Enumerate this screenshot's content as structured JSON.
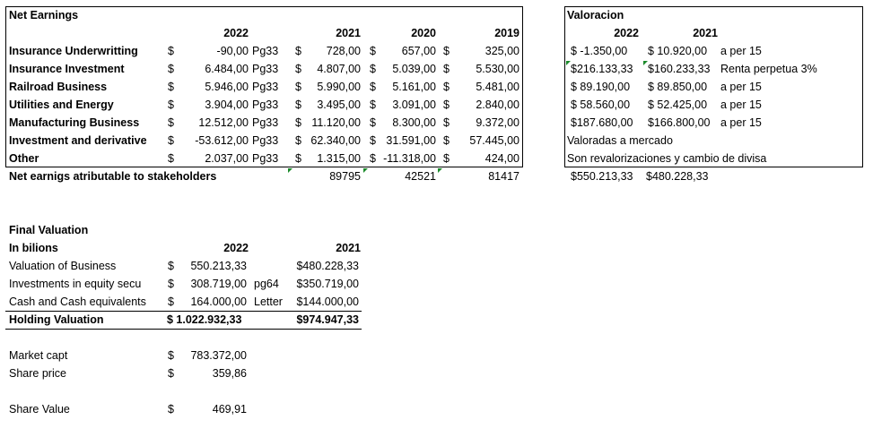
{
  "net_earnings": {
    "title": "Net Earnings",
    "years": [
      "2022",
      "2021",
      "2020",
      "2019"
    ],
    "currency": "$",
    "page_ref": "Pg33",
    "rows": [
      {
        "label": "Insurance Underwritting",
        "v2022": "-90,00",
        "v2021": "728,00",
        "v2020": "657,00",
        "v2019": "325,00"
      },
      {
        "label": "Insurance Investment",
        "v2022": "6.484,00",
        "v2021": "4.807,00",
        "v2020": "5.039,00",
        "v2019": "5.530,00"
      },
      {
        "label": "Railroad Business",
        "v2022": "5.946,00",
        "v2021": "5.990,00",
        "v2020": "5.161,00",
        "v2019": "5.481,00"
      },
      {
        "label": "Utilities and Energy",
        "v2022": "3.904,00",
        "v2021": "3.495,00",
        "v2020": "3.091,00",
        "v2019": "2.840,00"
      },
      {
        "label": "Manufacturing Business",
        "v2022": "12.512,00",
        "v2021": "11.120,00",
        "v2020": "8.300,00",
        "v2019": "9.372,00"
      },
      {
        "label": "Investment and derivative",
        "v2022": "-53.612,00",
        "v2021": "62.340,00",
        "v2020": "31.591,00",
        "v2019": "57.445,00"
      },
      {
        "label": "Other",
        "v2022": "2.037,00",
        "v2021": "1.315,00",
        "v2020": "-11.318,00",
        "v2019": "424,00"
      }
    ],
    "total_label": "Net earnigs atributable to stakeholders",
    "total_2021": "89795",
    "total_2020": "42521",
    "total_2019": "81417"
  },
  "valoracion": {
    "title": "Valoracion",
    "years": [
      "2022",
      "2021"
    ],
    "rows": [
      {
        "v2022": "$  -1.350,00",
        "v2021": "$  10.920,00",
        "note": "a per 15"
      },
      {
        "v2022": "$216.133,33",
        "v2021": "$160.233,33",
        "note": "Renta perpetua 3%"
      },
      {
        "v2022": "$  89.190,00",
        "v2021": "$  89.850,00",
        "note": "a per 15"
      },
      {
        "v2022": "$  58.560,00",
        "v2021": "$  52.425,00",
        "note": "a per 15"
      },
      {
        "v2022": "$187.680,00",
        "v2021": "$166.800,00",
        "note": "a per 15"
      }
    ],
    "note_market": "Valoradas a mercado",
    "note_reval": "Son revalorizaciones y cambio de divisa",
    "total_2022": "$550.213,33",
    "total_2021": "$480.228,33"
  },
  "final_valuation": {
    "title": "Final Valuation",
    "subtitle": "In bilions",
    "years": [
      "2022",
      "2021"
    ],
    "currency": "$",
    "rows": [
      {
        "label": "Valuation of Business",
        "v2022": "550.213,33",
        "ref": "",
        "v2021": "$480.228,33"
      },
      {
        "label": "Investments in equity secu",
        "v2022": "308.719,00",
        "ref": "pg64",
        "v2021": "$350.719,00"
      },
      {
        "label": "Cash and Cash equivalents",
        "v2022": "164.000,00",
        "ref": "Letter",
        "v2021": "$144.000,00"
      }
    ],
    "holding_label": "Holding Valuation",
    "holding_2022": "$ 1.022.932,33",
    "holding_2021": "$974.947,33",
    "market_cap_label": "Market capt",
    "market_cap_value": "783.372,00",
    "share_price_label": "Share price",
    "share_price_value": "359,86",
    "share_value_label": "Share Value",
    "share_value_value": "469,91"
  }
}
